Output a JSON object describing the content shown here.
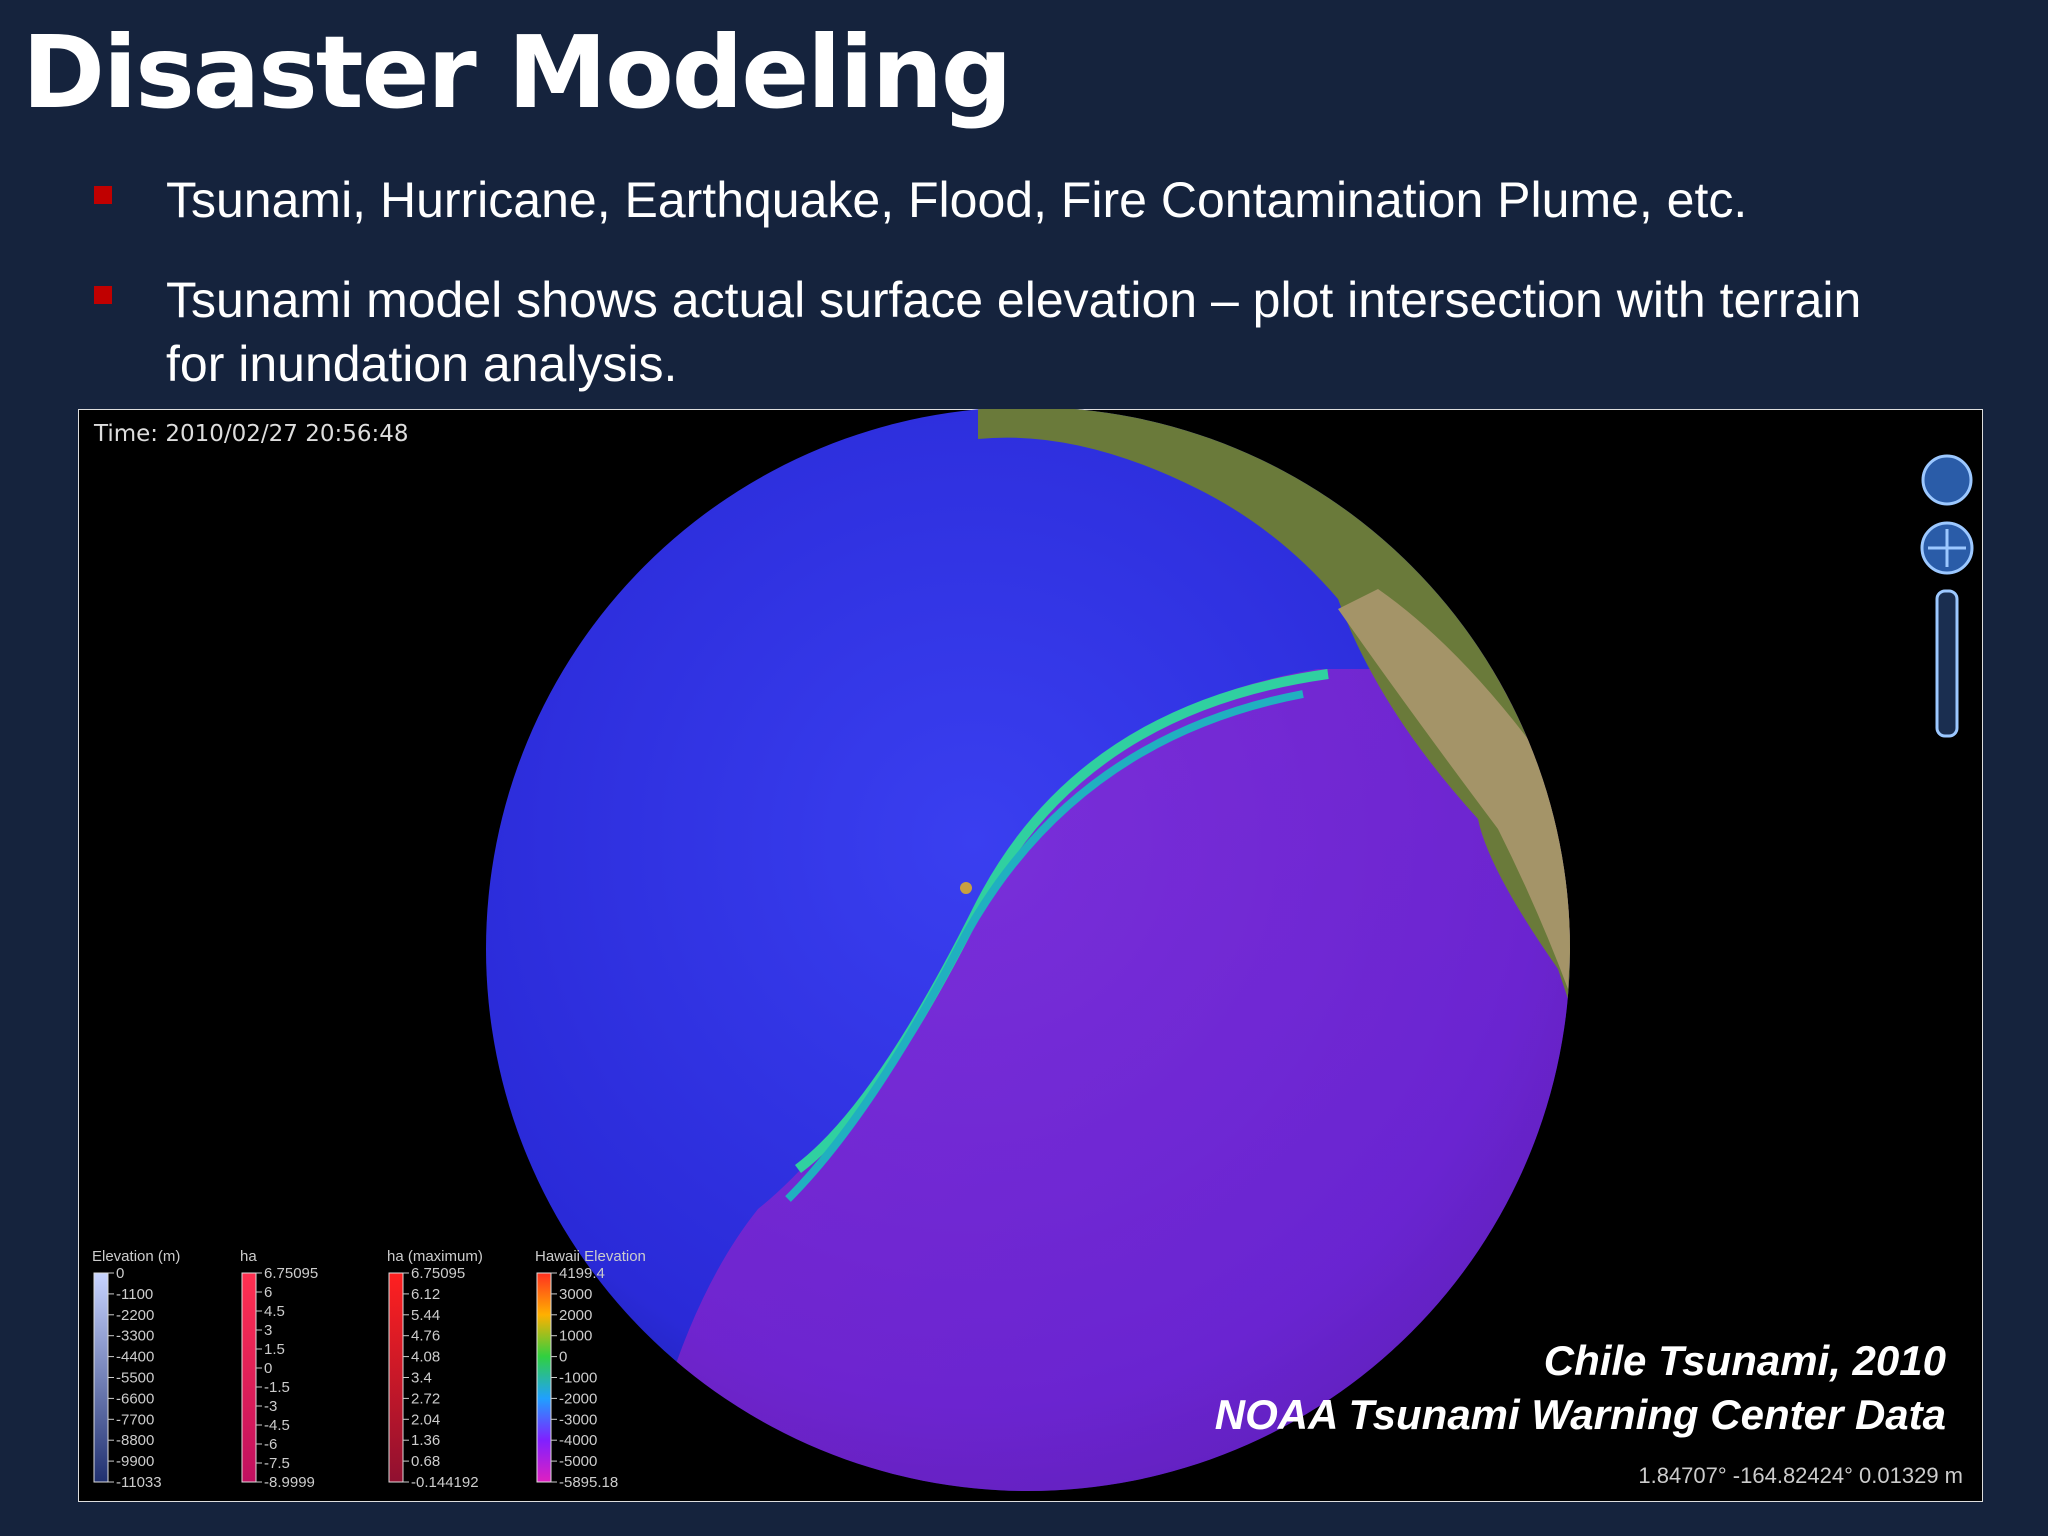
{
  "header": {
    "title": "Disaster Modeling"
  },
  "bullets": [
    {
      "lines": [
        "Tsunami, Hurricane, Earthquake, Flood, Fire Contamination Plume, etc."
      ]
    },
    {
      "lines": [
        "Tsunami model shows actual surface elevation – plot intersection with terrain",
        "for inundation analysis."
      ]
    }
  ],
  "screenshot": {
    "time": "Time: 2010/02/27 20:56:48",
    "legends": [
      {
        "title": "Elevation (m)",
        "labels": [
          "0",
          "-1100",
          "-2200",
          "-3300",
          "-4400",
          "-5500",
          "-6600",
          "-7700",
          "-8800",
          "-9900",
          "-11033"
        ]
      },
      {
        "title": "ha",
        "labels": [
          "6.75095",
          "6",
          "4.5",
          "3",
          "1.5",
          "0",
          "-1.5",
          "-3",
          "-4.5",
          "-6",
          "-7.5",
          "-8.9999"
        ]
      },
      {
        "title": "ha (maximum)",
        "labels": [
          "6.75095",
          "6.12",
          "5.44",
          "4.76",
          "4.08",
          "3.4",
          "2.72",
          "2.04",
          "1.36",
          "0.68",
          "-0.144192"
        ]
      },
      {
        "title": "Hawaii Elevation",
        "labels": [
          "4199.4",
          "3000",
          "2000",
          "1000",
          "0",
          "-1000",
          "-2000",
          "-3000",
          "-4000",
          "-5000",
          "-5895.18"
        ]
      }
    ],
    "caption": [
      "Chile Tsunami, 2010",
      "NOAA Tsunami Warning Center Data"
    ],
    "coordinates": "1.84707° -164.82424° 0.01329 m"
  }
}
